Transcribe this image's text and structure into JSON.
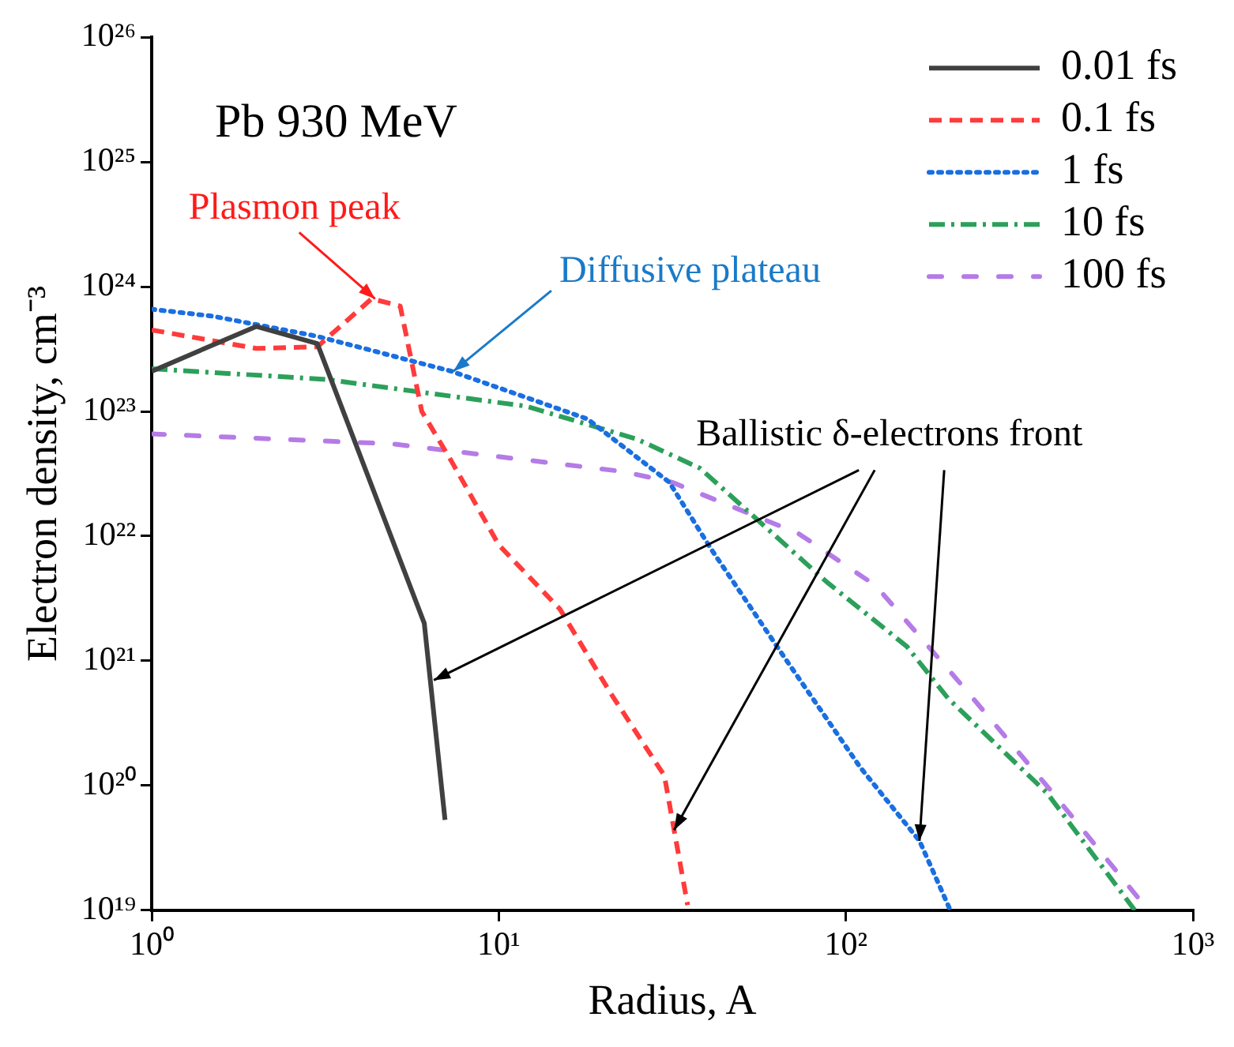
{
  "chart_data": {
    "type": "line",
    "title": "Pb 930 MeV",
    "xlabel": "Radius, A",
    "ylabel": "Electron density, cm⁻³",
    "log": "xy",
    "grid": false,
    "legend": "top right",
    "marker": "none",
    "xlim": [
      1,
      1000
    ],
    "ylim": [
      1e+19,
      1e+26
    ],
    "xticks": [
      {
        "value": 1,
        "label": "10⁰"
      },
      {
        "value": 10,
        "label": "10¹"
      },
      {
        "value": 100,
        "label": "10²"
      },
      {
        "value": 1000,
        "label": "10³"
      }
    ],
    "yticks": [
      {
        "value": 1e+19,
        "label": "10¹⁹"
      },
      {
        "value": 1e+20,
        "label": "10²⁰"
      },
      {
        "value": 1e+21,
        "label": "10²¹"
      },
      {
        "value": 1e+22,
        "label": "10²²"
      },
      {
        "value": 1e+23,
        "label": "10²³"
      },
      {
        "value": 1e+24,
        "label": "10²⁴"
      },
      {
        "value": 1e+25,
        "label": "10²⁵"
      },
      {
        "value": 1e+26,
        "label": "10²⁶"
      }
    ],
    "series": [
      {
        "name": "0.01 fs",
        "color": "#404040",
        "line_style": "solid",
        "x": [
          1,
          2,
          3,
          6.1,
          7
        ],
        "values": [
          2.1e+23,
          4.8e+23,
          3.5e+23,
          2e+21,
          5.3e+19
        ]
      },
      {
        "name": "0.1 fs",
        "color": "#ff3b3b",
        "line_style": "dashed",
        "x": [
          1,
          2,
          3,
          4.3,
          5.2,
          6,
          7.3,
          10,
          15,
          21,
          30,
          32,
          35
        ],
        "values": [
          4.5e+23,
          3.2e+23,
          3.3e+23,
          8e+23,
          7e+23,
          1e+23,
          4e+22,
          8.5e+21,
          2.6e+21,
          5.5e+20,
          1.2e+20,
          4.4e+19,
          1.1e+19
        ]
      },
      {
        "name": "1 fs",
        "color": "#1a6fe0",
        "line_style": "dotted",
        "x": [
          1,
          1.5,
          3,
          7.3,
          18,
          31,
          41,
          66,
          110,
          163,
          200
        ],
        "values": [
          6.6e+23,
          5.8e+23,
          4e+23,
          2.1e+23,
          8.7e+22,
          2.7e+22,
          7.8e+21,
          1.1e+21,
          1.4e+20,
          3.6e+19,
          1e+19
        ]
      },
      {
        "name": "10 fs",
        "color": "#2ca05a",
        "line_style": "dashdot",
        "x": [
          1,
          3.2,
          12,
          25,
          38,
          88,
          150,
          197,
          380,
          680
        ],
        "values": [
          2.2e+23,
          1.8e+23,
          1.1e+23,
          6e+22,
          3.5e+22,
          4.3e+21,
          1.3e+21,
          5e+20,
          8.7e+19,
          1e+19
        ]
      },
      {
        "name": "100 fs",
        "color": "#b57be6",
        "line_style": "longdash",
        "x": [
          1,
          4.9,
          22.7,
          31.6,
          73,
          122,
          220,
          395,
          705
        ],
        "values": [
          6.6e+22,
          5.5e+22,
          3.3e+22,
          2.7e+22,
          1.05e+22,
          4e+21,
          6e+20,
          8.7e+19,
          1.2e+19
        ]
      }
    ],
    "annotations": [
      {
        "text": "Plasmon peak",
        "x": 4.4,
        "y": 8e+23
      },
      {
        "text": "Diffusive plateau",
        "x": 7.4,
        "y": 2.1e+23
      },
      {
        "text": "Ballistic δ-electrons front",
        "x": 6.5,
        "y": 7e+20
      }
    ]
  }
}
